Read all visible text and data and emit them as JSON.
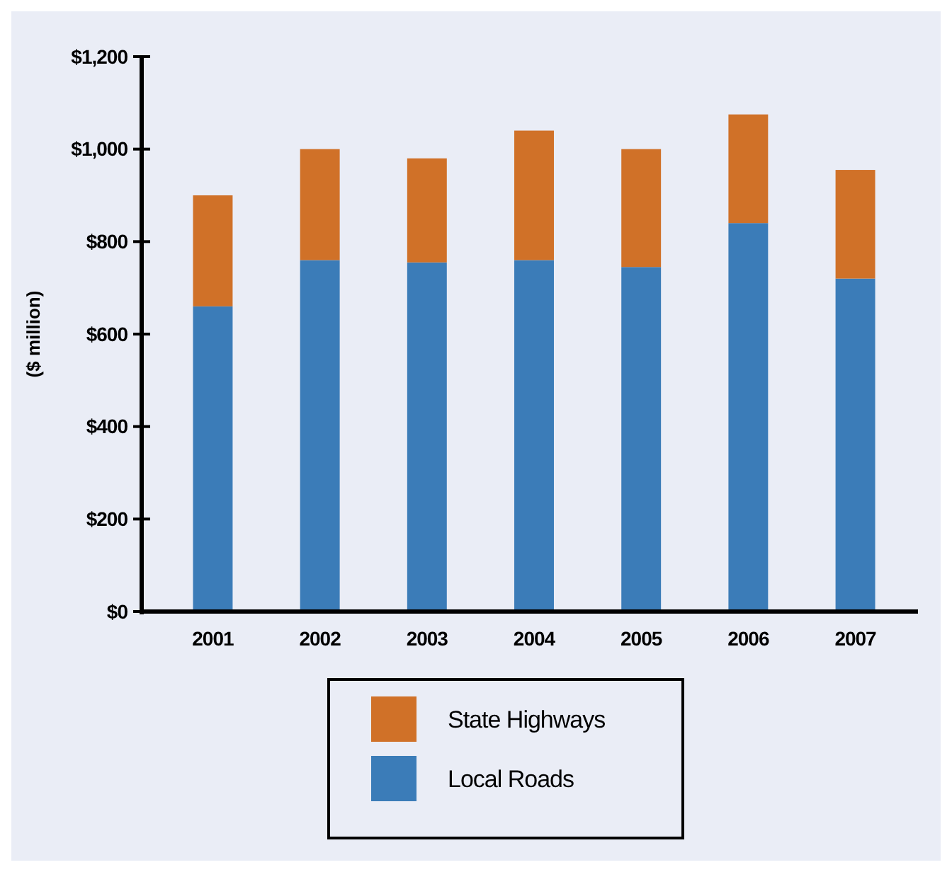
{
  "chart_data": {
    "type": "bar",
    "ylabel": "($ million)",
    "categories": [
      "2001",
      "2002",
      "2003",
      "2004",
      "2005",
      "2006",
      "2007"
    ],
    "stacked": true,
    "series": [
      {
        "name": "Local Roads",
        "color": "#3b7cb8",
        "values": [
          660,
          760,
          755,
          760,
          745,
          840,
          720
        ]
      },
      {
        "name": "State Highways",
        "color": "#d07128",
        "values": [
          240,
          240,
          225,
          280,
          255,
          235,
          235
        ]
      }
    ],
    "ylim": [
      0,
      1200
    ],
    "yticks": [
      {
        "value": 0,
        "label": "$0"
      },
      {
        "value": 200,
        "label": "$200"
      },
      {
        "value": 400,
        "label": "$400"
      },
      {
        "value": 600,
        "label": "$600"
      },
      {
        "value": 800,
        "label": "$800"
      },
      {
        "value": 1000,
        "label": "$1,000"
      },
      {
        "value": 1200,
        "label": "$1,200"
      }
    ],
    "grid": false,
    "legend": "bottom"
  }
}
